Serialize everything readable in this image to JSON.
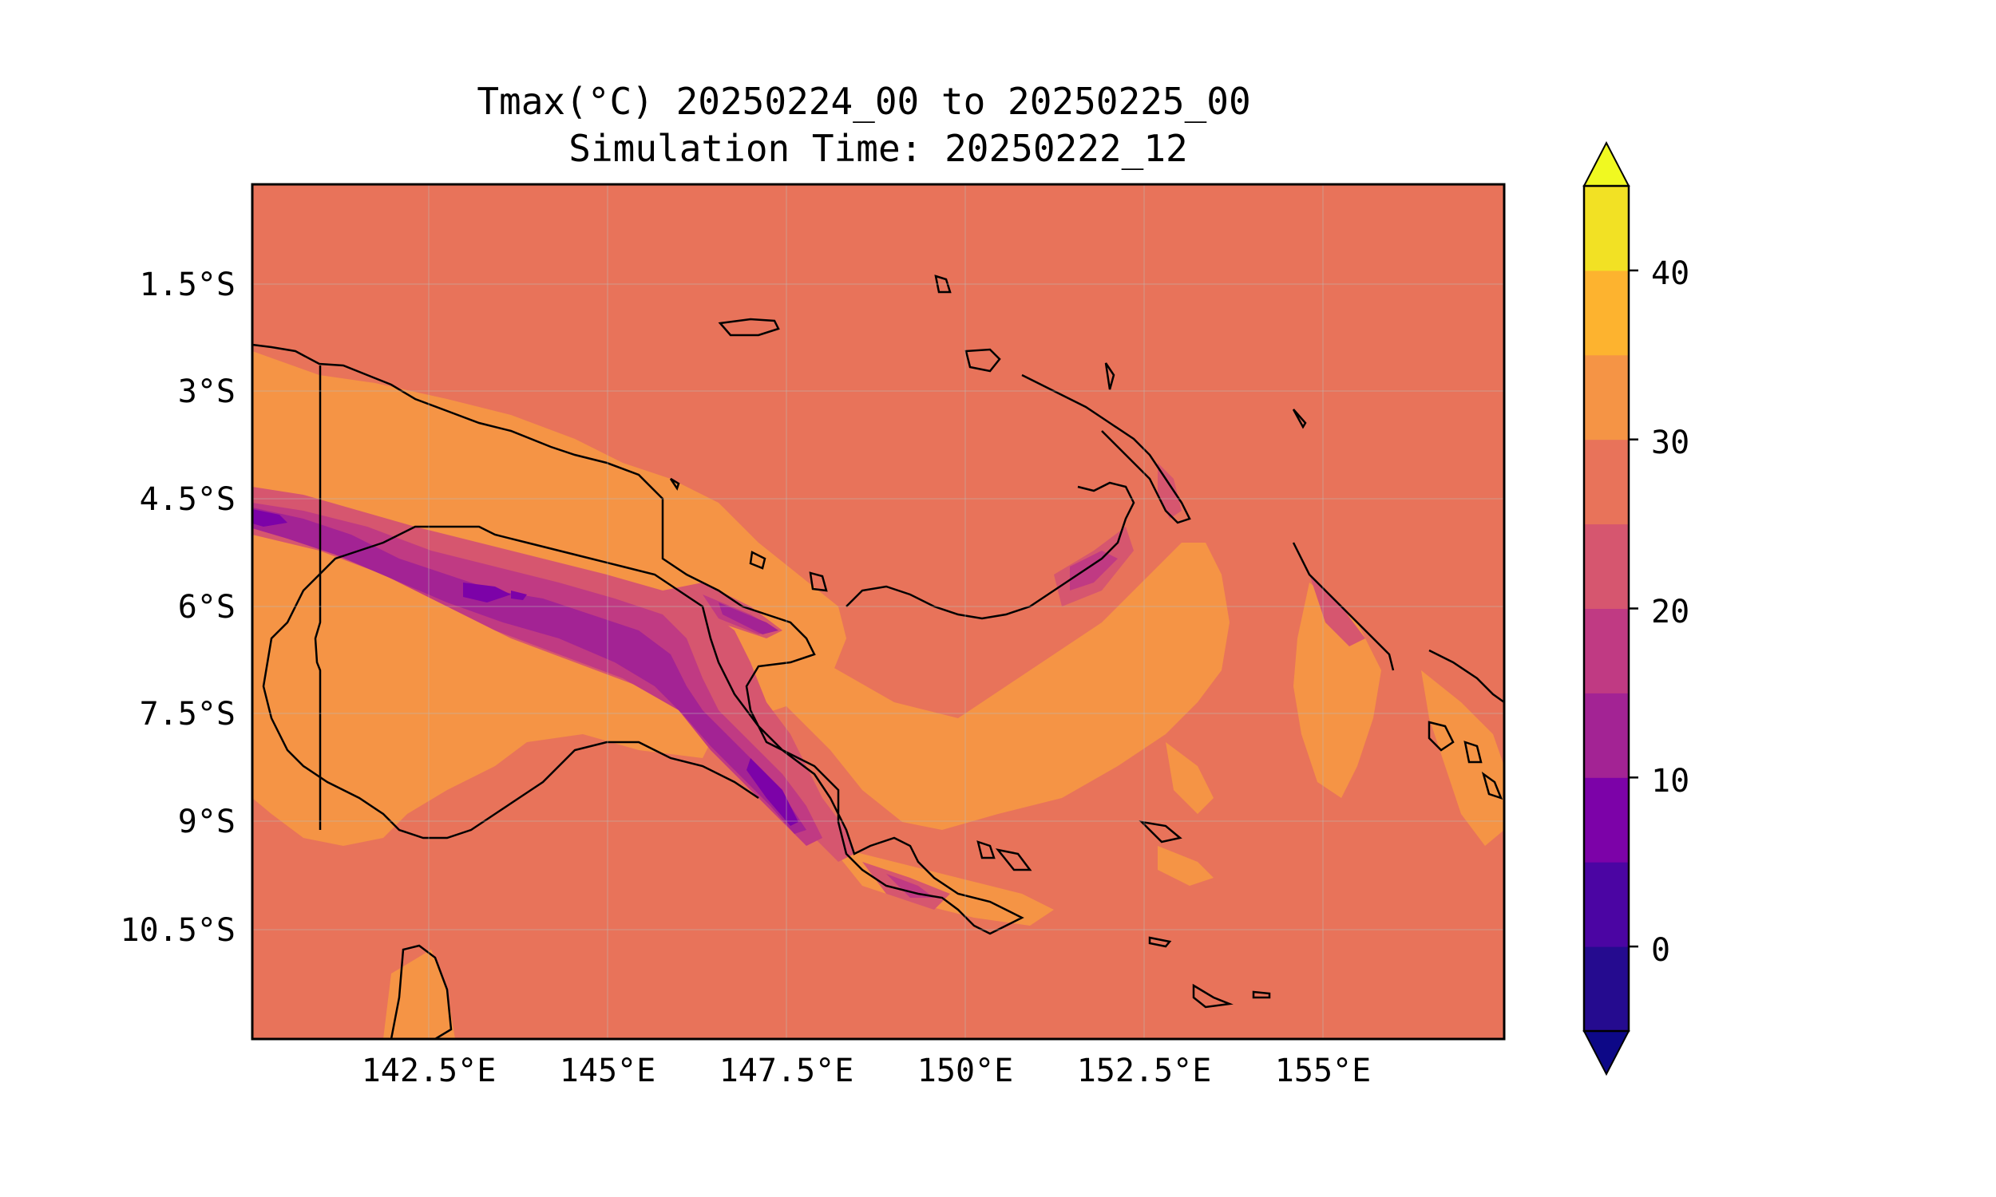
{
  "figure": {
    "title_line1": "Tmax(°C) 20250224_00 to 20250225_00",
    "title_line2": "Simulation Time: 20250222_12"
  },
  "map": {
    "lon_ticks": [
      "142.5°E",
      "145°E",
      "147.5°E",
      "150°E",
      "152.5°E",
      "155°E"
    ],
    "lat_ticks": [
      "1.5°S",
      "3°S",
      "4.5°S",
      "6°S",
      "7.5°S",
      "9°S",
      "10.5°S"
    ],
    "background_level_color": "#e8735a"
  },
  "colorbar": {
    "ticks": [
      "40",
      "30",
      "20",
      "10",
      "0"
    ],
    "levels": [
      -5,
      0,
      5,
      10,
      15,
      20,
      25,
      30,
      35,
      40,
      45
    ],
    "colors": [
      "#250b8f",
      "#4b05a3",
      "#7c02a8",
      "#a32394",
      "#c03a83",
      "#d6566f",
      "#e8735a",
      "#f59445",
      "#fdb32f",
      "#f2e124"
    ],
    "extend_low_color": "#0d0887",
    "extend_high_color": "#f0f921",
    "extend": "both"
  }
}
